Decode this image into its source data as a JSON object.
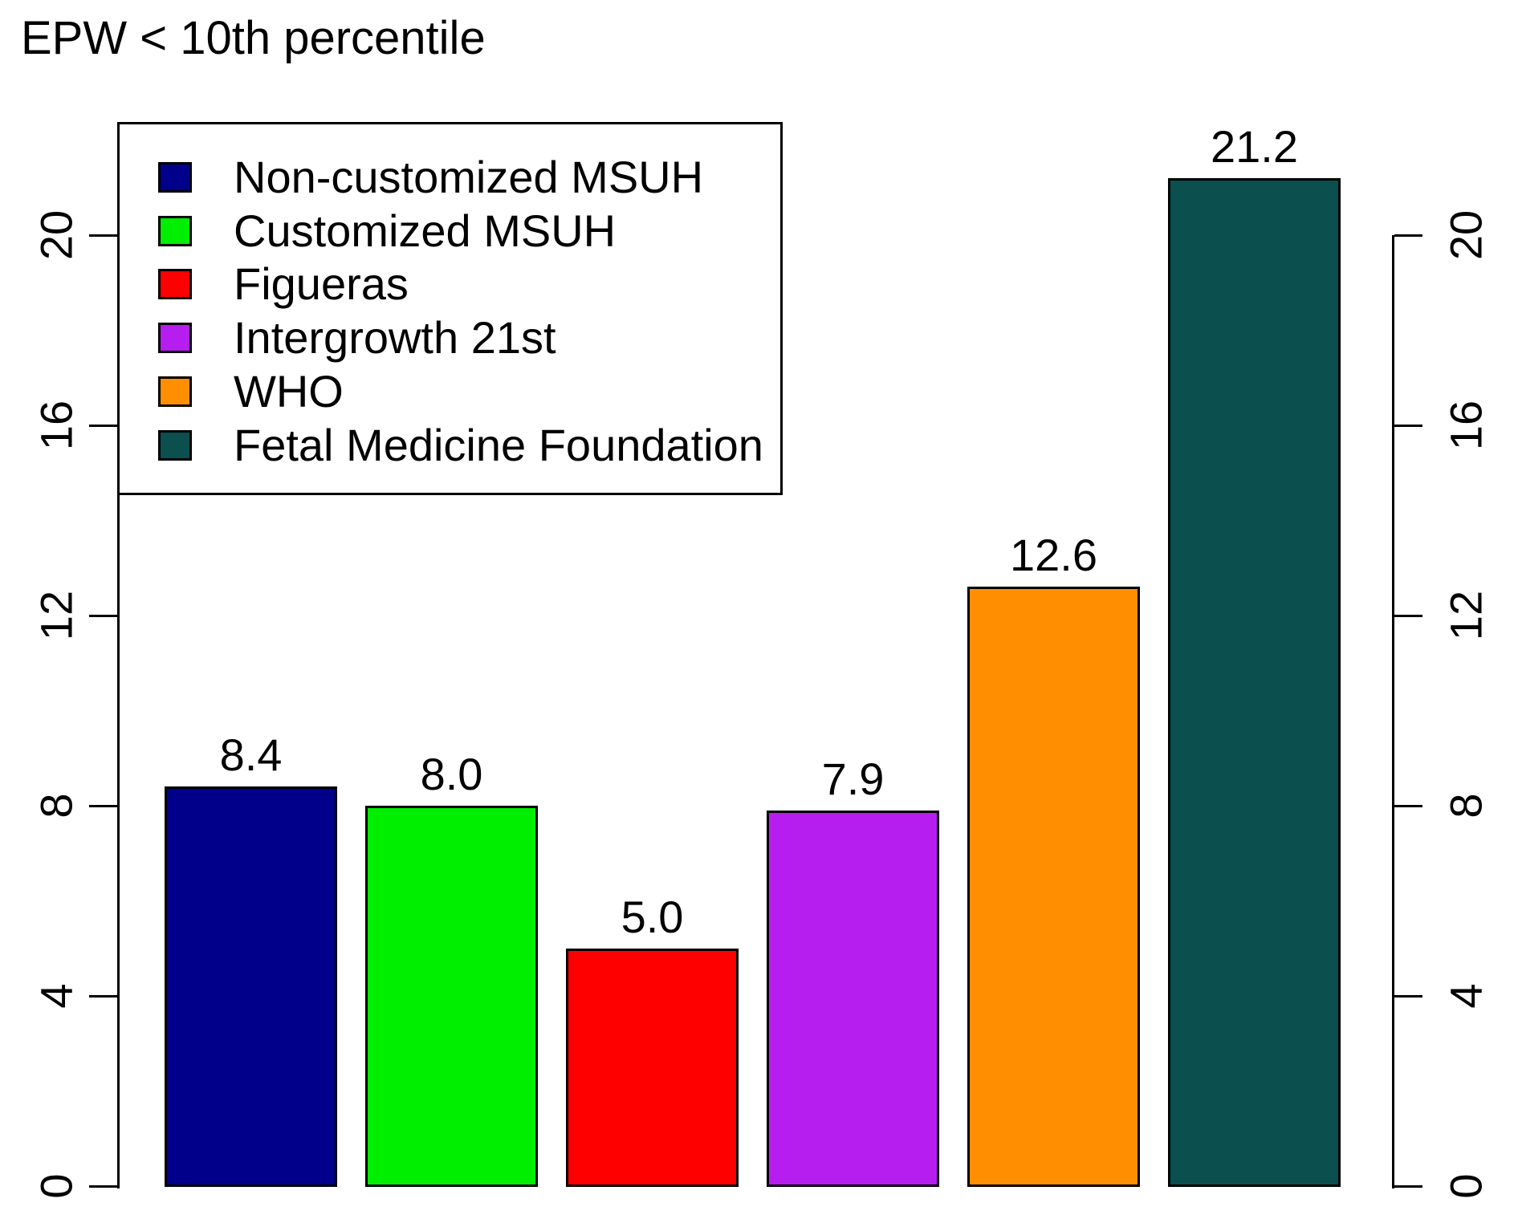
{
  "title": "EPW < 10th percentile",
  "chart_data": {
    "type": "bar",
    "title": "EPW < 10th percentile",
    "categories": [
      "Non-customized MSUH",
      "Customized MSUH",
      "Figueras",
      "Intergrowth 21st",
      "WHO",
      "Fetal Medicine Foundation"
    ],
    "values": [
      8.4,
      8.0,
      5.0,
      7.9,
      12.6,
      21.2
    ],
    "bar_value_labels": [
      "8.4",
      "8.0",
      "5.0",
      "7.9",
      "12.6",
      "21.2"
    ],
    "bar_colors": [
      "#00008B",
      "#00EE00",
      "#FF0000",
      "#B61EF0",
      "#FF8F00",
      "#0B4F4F"
    ],
    "xlabel": "",
    "ylabel": "",
    "ylim": [
      0,
      21.5
    ],
    "ytick_values": [
      0,
      4,
      8,
      12,
      16,
      20
    ],
    "yticks_left": [
      "0",
      "4",
      "8",
      "12",
      "16",
      "20"
    ],
    "yticks_right": [
      "0",
      "4",
      "8",
      "12",
      "16",
      "20"
    ],
    "grid": false,
    "axes": {
      "left": true,
      "right": true,
      "bottom_labels": false,
      "tick_label_rotation_deg": -90
    },
    "legend": {
      "position": "top-left",
      "entries": [
        {
          "label": "Non-customized MSUH",
          "color": "#00008B"
        },
        {
          "label": "Customized MSUH",
          "color": "#00EE00"
        },
        {
          "label": "Figueras",
          "color": "#FF0000"
        },
        {
          "label": "Intergrowth 21st",
          "color": "#B61EF0"
        },
        {
          "label": "WHO",
          "color": "#FF8F00"
        },
        {
          "label": "Fetal Medicine Foundation",
          "color": "#0B4F4F"
        }
      ]
    },
    "colors": {
      "background": "#FFFFFF",
      "axis": "#000000",
      "text": "#000000",
      "bar_border": "#000000"
    }
  }
}
